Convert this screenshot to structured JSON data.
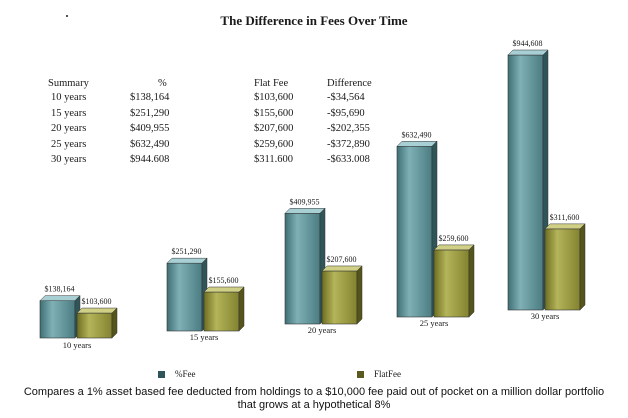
{
  "title": "The Difference in Fees Over Time",
  "summary_table": {
    "headers": [
      "Summary",
      "%",
      "Flat Fee",
      "Difference"
    ],
    "rows": [
      [
        "10 years",
        "$138,164",
        "$103,600",
        "-$34,564"
      ],
      [
        "15 years",
        "$251,290",
        "$155,600",
        "-$95,690"
      ],
      [
        "20 years",
        "$409,955",
        "$207,600",
        "-$202,355"
      ],
      [
        "25 years",
        "$632,490",
        "$259,600",
        "-$372,890"
      ],
      [
        "30 years",
        "$944.608",
        "$311.600",
        "-$633.008"
      ]
    ]
  },
  "chart_data": {
    "type": "bar",
    "categories": [
      "10 years",
      "15 years",
      "20 years",
      "25 years",
      "30 years"
    ],
    "series": [
      {
        "name": "%Fee",
        "values": [
          138164,
          251290,
          409955,
          632490,
          944608
        ],
        "labels": [
          "$138,164",
          "$251,290",
          "$409,955",
          "$632,490",
          "$944,608"
        ]
      },
      {
        "name": "FlatFee",
        "values": [
          103600,
          155600,
          207600,
          259600,
          311600
        ],
        "labels": [
          "$103,600",
          "$155,600",
          "$207,600",
          "$259,600",
          "$311,600"
        ]
      }
    ],
    "title": "The Difference in Fees Over Time",
    "xlabel": "",
    "ylabel": "",
    "legend_position": "bottom",
    "grid": false,
    "colors": {
      "fee": "#4f8a92",
      "flat": "#9a9a3a"
    }
  },
  "legend": {
    "fee_label": "%Fee",
    "flat_label": "FlatFee"
  },
  "caption": "Compares a 1% asset based fee deducted from holdings to a $10,000 fee paid out of pocket on a million dollar portfolio that grows at a hypothetical 8%"
}
